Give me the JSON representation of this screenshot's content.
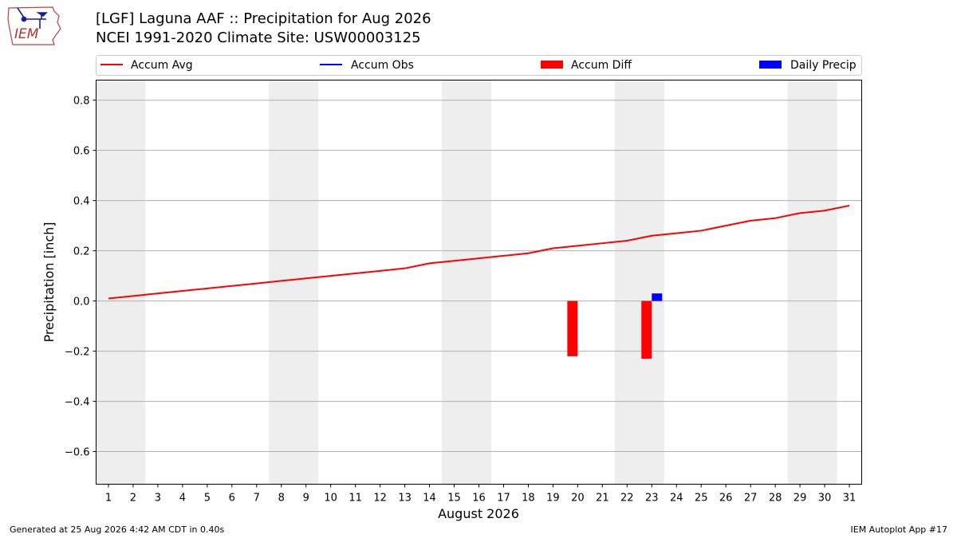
{
  "header": {
    "title_line1": "[LGF] Laguna AAF :: Precipitation for Aug 2026",
    "title_line2": "NCEI 1991-2020 Climate Site: USW00003125"
  },
  "logo": {
    "text": "IEM"
  },
  "footer": {
    "left": "Generated at 25 Aug 2026 4:42 AM CDT in 0.40s",
    "right": "IEM Autoplot App #17"
  },
  "colors": {
    "accum_avg": "#ff0000",
    "accum_obs": "#0000ff",
    "accum_diff": "#ff0000",
    "daily_precip": "#0000ff",
    "weekend_shade": "#eeeeee",
    "grid": "#b0b0b0"
  },
  "chart_data": {
    "type": "line",
    "xlabel": "August 2026",
    "ylabel": "Precipitation [inch]",
    "xlim": [
      0.5,
      31.5
    ],
    "ylim": [
      -0.73,
      0.88
    ],
    "x": [
      1,
      2,
      3,
      4,
      5,
      6,
      7,
      8,
      9,
      10,
      11,
      12,
      13,
      14,
      15,
      16,
      17,
      18,
      19,
      20,
      21,
      22,
      23,
      24,
      25,
      26,
      27,
      28,
      29,
      30,
      31
    ],
    "yticks": [
      -0.6,
      -0.4,
      -0.2,
      0.0,
      0.2,
      0.4,
      0.6,
      0.8
    ],
    "ytick_labels": [
      "−0.6",
      "−0.4",
      "−0.2",
      "0.0",
      "0.2",
      "0.4",
      "0.6",
      "0.8"
    ],
    "grid": "horizontal",
    "legend_position": "top",
    "weekend_spans": [
      [
        0.5,
        2.5
      ],
      [
        7.5,
        9.5
      ],
      [
        14.5,
        16.5
      ],
      [
        21.5,
        23.5
      ],
      [
        28.5,
        30.5
      ]
    ],
    "series": [
      {
        "name": "Accum Avg",
        "kind": "line",
        "x": [
          1,
          2,
          3,
          4,
          5,
          6,
          7,
          8,
          9,
          10,
          11,
          12,
          13,
          14,
          15,
          16,
          17,
          18,
          19,
          20,
          21,
          22,
          23,
          24,
          25,
          26,
          27,
          28,
          29,
          30,
          31
        ],
        "values": [
          0.01,
          0.02,
          0.03,
          0.04,
          0.05,
          0.06,
          0.07,
          0.08,
          0.09,
          0.1,
          0.11,
          0.12,
          0.13,
          0.15,
          0.16,
          0.17,
          0.18,
          0.19,
          0.21,
          0.22,
          0.23,
          0.24,
          0.26,
          0.27,
          0.28,
          0.3,
          0.32,
          0.33,
          0.35,
          0.36,
          0.38
        ]
      },
      {
        "name": "Accum Obs",
        "kind": "line",
        "x": [],
        "values": []
      },
      {
        "name": "Accum Diff",
        "kind": "bar",
        "x": [
          20,
          23
        ],
        "values": [
          -0.22,
          -0.23
        ]
      },
      {
        "name": "Daily Precip",
        "kind": "bar",
        "x": [
          23
        ],
        "values": [
          0.03
        ]
      }
    ]
  }
}
